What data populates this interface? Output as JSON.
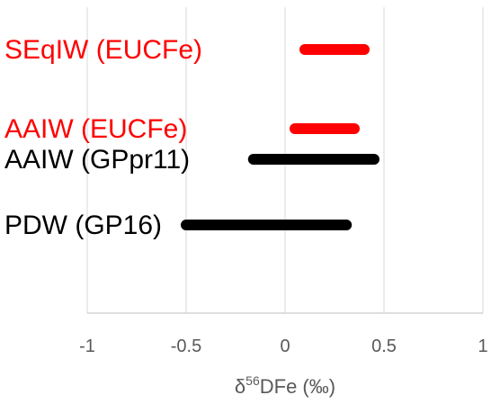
{
  "chart_data": {
    "type": "bar",
    "subtype": "floating-range",
    "title": "",
    "xlabel_prefix": "δ",
    "xlabel_superscript": "56",
    "xlabel_suffix": "DFe (‰)",
    "xlim": [
      -1,
      1
    ],
    "x_ticks": [
      {
        "value": -1,
        "label": "-1"
      },
      {
        "value": -0.5,
        "label": "-0.5"
      },
      {
        "value": 0,
        "label": "0"
      },
      {
        "value": 0.5,
        "label": "0.5"
      },
      {
        "value": 1,
        "label": "1"
      }
    ],
    "grid": true,
    "legend": "none",
    "series": [
      {
        "label": "SEqIW (EUCFe)",
        "min": 0.1,
        "max": 0.4,
        "color": "#ff0000"
      },
      {
        "label": "AAIW (EUCFe)",
        "min": 0.05,
        "max": 0.35,
        "color": "#ff0000"
      },
      {
        "label": "AAIW (GPpr11)",
        "min": -0.16,
        "max": 0.45,
        "color": "#000000"
      },
      {
        "label": "PDW (GP16)",
        "min": -0.5,
        "max": 0.31,
        "color": "#000000"
      }
    ]
  }
}
